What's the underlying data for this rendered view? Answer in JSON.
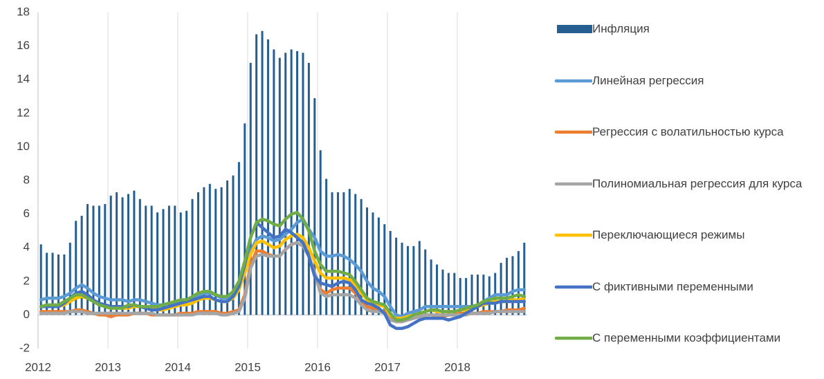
{
  "chart_data": {
    "type": "bar-line",
    "categories": [
      "2012",
      null,
      null,
      null,
      null,
      null,
      null,
      null,
      null,
      null,
      null,
      null,
      "2013",
      null,
      null,
      null,
      null,
      null,
      null,
      null,
      null,
      null,
      null,
      null,
      "2014",
      null,
      null,
      null,
      null,
      null,
      null,
      null,
      null,
      null,
      null,
      null,
      "2015",
      null,
      null,
      null,
      null,
      null,
      null,
      null,
      null,
      null,
      null,
      null,
      "2016",
      null,
      null,
      null,
      null,
      null,
      null,
      null,
      null,
      null,
      null,
      null,
      "2017",
      null,
      null,
      null,
      null,
      null,
      null,
      null,
      null,
      null,
      null,
      null,
      "2018",
      null,
      null,
      null,
      null,
      null,
      null,
      null,
      null,
      null,
      null,
      null
    ],
    "series": [
      {
        "name": "Инфляция",
        "kind": "bar",
        "color": "#255e91",
        "values": [
          4.2,
          3.7,
          3.7,
          3.6,
          3.6,
          4.3,
          5.6,
          5.9,
          6.6,
          6.5,
          6.5,
          6.6,
          7.1,
          7.3,
          7.0,
          7.2,
          7.4,
          6.9,
          6.5,
          6.5,
          6.1,
          6.3,
          6.5,
          6.5,
          6.1,
          6.2,
          6.9,
          7.3,
          7.6,
          7.8,
          7.5,
          7.6,
          8.0,
          8.3,
          9.1,
          11.4,
          15.0,
          16.7,
          16.9,
          16.4,
          15.8,
          15.3,
          15.6,
          15.8,
          15.7,
          15.6,
          15.0,
          12.9,
          9.8,
          8.1,
          7.3,
          7.3,
          7.3,
          7.5,
          7.2,
          6.9,
          6.4,
          6.1,
          5.8,
          5.4,
          5.0,
          4.6,
          4.3,
          4.1,
          4.1,
          4.4,
          3.9,
          3.3,
          3.0,
          2.7,
          2.5,
          2.5,
          2.2,
          2.2,
          2.4,
          2.4,
          2.4,
          2.3,
          2.5,
          3.1,
          3.4,
          3.5,
          3.8,
          4.3
        ]
      },
      {
        "name": "Линейная регрессия",
        "kind": "line",
        "color": "#5b9bd5",
        "values": [
          0.9,
          1.0,
          1.0,
          1.0,
          1.1,
          1.3,
          1.6,
          1.8,
          1.6,
          1.3,
          1.1,
          1.0,
          0.9,
          0.9,
          0.9,
          0.8,
          0.9,
          0.9,
          0.8,
          0.7,
          0.6,
          0.6,
          0.7,
          0.7,
          0.8,
          0.8,
          0.9,
          1.1,
          1.3,
          1.3,
          1.2,
          1.0,
          1.0,
          1.2,
          1.6,
          2.5,
          3.8,
          4.5,
          4.7,
          4.6,
          4.4,
          4.5,
          4.8,
          5.1,
          5.5,
          5.7,
          5.1,
          4.6,
          3.8,
          3.5,
          3.5,
          3.6,
          3.5,
          3.3,
          3.0,
          2.6,
          2.0,
          1.6,
          1.4,
          1.1,
          0.5,
          0.0,
          -0.1,
          0.1,
          0.2,
          0.3,
          0.5,
          0.5,
          0.5,
          0.5,
          0.5,
          0.5,
          0.5,
          0.5,
          0.5,
          0.6,
          0.8,
          1.0,
          1.2,
          1.2,
          1.2,
          1.4,
          1.5,
          1.5
        ]
      },
      {
        "name": "Регрессия с волатильностью курса",
        "kind": "line",
        "color": "#ed7d31",
        "values": [
          0.2,
          0.2,
          0.2,
          0.2,
          0.2,
          0.2,
          0.3,
          0.3,
          0.2,
          0.1,
          0.0,
          0.0,
          -0.1,
          0.0,
          0.0,
          0.0,
          0.1,
          0.1,
          0.1,
          0.0,
          0.0,
          0.0,
          0.0,
          0.0,
          0.1,
          0.1,
          0.1,
          0.2,
          0.2,
          0.2,
          0.2,
          0.1,
          0.1,
          0.2,
          0.3,
          1.2,
          3.0,
          3.8,
          3.8,
          3.6,
          3.5,
          3.5,
          3.9,
          4.2,
          4.3,
          4.1,
          3.5,
          2.5,
          1.5,
          1.3,
          1.5,
          1.6,
          1.6,
          1.6,
          1.3,
          0.9,
          0.5,
          0.4,
          0.3,
          0.2,
          -0.2,
          -0.4,
          -0.4,
          -0.3,
          -0.2,
          -0.1,
          0.0,
          0.0,
          -0.1,
          -0.1,
          0.0,
          0.0,
          0.1,
          0.1,
          0.1,
          0.1,
          0.2,
          0.2,
          0.2,
          0.2,
          0.3,
          0.3,
          0.3,
          0.4
        ]
      },
      {
        "name": "Полиномиальная регрессия для курса",
        "kind": "line",
        "color": "#a5a5a5",
        "values": [
          0.1,
          0.1,
          0.1,
          0.1,
          0.1,
          0.2,
          0.2,
          0.2,
          0.1,
          0.1,
          0.1,
          0.1,
          0.1,
          0.1,
          0.1,
          0.1,
          0.1,
          0.1,
          0.1,
          0.1,
          0.0,
          0.0,
          0.0,
          0.0,
          0.0,
          0.0,
          0.0,
          0.1,
          0.1,
          0.1,
          0.1,
          0.0,
          0.0,
          0.1,
          0.2,
          1.0,
          2.8,
          3.5,
          3.6,
          3.5,
          3.5,
          3.5,
          3.9,
          4.2,
          4.3,
          4.1,
          3.5,
          2.5,
          1.3,
          1.1,
          1.2,
          1.2,
          1.2,
          1.2,
          1.0,
          0.6,
          0.3,
          0.2,
          0.2,
          0.1,
          -0.3,
          -0.4,
          -0.4,
          -0.3,
          -0.2,
          -0.1,
          0.0,
          0.0,
          0.0,
          0.0,
          0.0,
          0.0,
          0.0,
          0.0,
          0.1,
          0.1,
          0.1,
          0.1,
          0.2,
          0.2,
          0.2,
          0.2,
          0.2,
          0.2
        ]
      },
      {
        "name": "Переключающиеся режимы",
        "kind": "line",
        "color": "#ffc000",
        "values": [
          0.5,
          0.5,
          0.5,
          0.5,
          0.6,
          0.8,
          1.0,
          1.1,
          1.0,
          0.8,
          0.6,
          0.5,
          0.4,
          0.4,
          0.4,
          0.4,
          0.5,
          0.5,
          0.5,
          0.4,
          0.3,
          0.3,
          0.4,
          0.5,
          0.6,
          0.6,
          0.7,
          0.9,
          1.0,
          1.0,
          0.9,
          0.8,
          0.8,
          1.0,
          1.5,
          2.5,
          3.6,
          4.3,
          4.4,
          4.2,
          4.0,
          4.1,
          4.5,
          4.7,
          4.8,
          4.6,
          4.0,
          3.2,
          2.5,
          2.2,
          2.2,
          2.2,
          2.2,
          2.1,
          1.8,
          1.3,
          0.9,
          0.7,
          0.6,
          0.5,
          0.0,
          -0.2,
          -0.2,
          -0.1,
          0.0,
          0.1,
          0.2,
          0.3,
          0.2,
          0.2,
          0.2,
          0.2,
          0.3,
          0.3,
          0.4,
          0.5,
          0.6,
          0.7,
          0.8,
          0.8,
          0.8,
          0.9,
          0.9,
          1.0
        ]
      },
      {
        "name": "С фиктивными переменными",
        "kind": "line",
        "color": "#4472c4",
        "values": [
          0.5,
          0.5,
          0.5,
          0.5,
          0.7,
          1.0,
          1.3,
          1.4,
          1.2,
          0.9,
          0.7,
          0.6,
          0.5,
          0.5,
          0.5,
          0.5,
          0.6,
          0.5,
          0.4,
          0.3,
          0.3,
          0.4,
          0.5,
          0.6,
          0.7,
          0.8,
          0.9,
          1.0,
          1.1,
          1.1,
          0.9,
          0.8,
          0.8,
          1.1,
          1.7,
          3.0,
          4.6,
          5.5,
          5.2,
          4.9,
          4.6,
          4.7,
          5.1,
          4.9,
          4.6,
          4.3,
          3.5,
          2.3,
          1.9,
          1.8,
          1.7,
          1.9,
          2.0,
          1.9,
          1.5,
          0.9,
          0.7,
          0.6,
          0.4,
          0.1,
          -0.6,
          -0.8,
          -0.8,
          -0.7,
          -0.5,
          -0.3,
          -0.2,
          -0.2,
          -0.2,
          -0.2,
          -0.3,
          -0.2,
          -0.1,
          0.1,
          0.3,
          0.5,
          0.7,
          0.7,
          0.7,
          0.8,
          0.8,
          0.8,
          0.8,
          0.8
        ]
      },
      {
        "name": "С переменными коэффициентами",
        "kind": "line",
        "color": "#70ad47",
        "values": [
          0.5,
          0.6,
          0.6,
          0.6,
          0.8,
          1.0,
          1.2,
          1.2,
          1.0,
          0.8,
          0.6,
          0.5,
          0.4,
          0.4,
          0.4,
          0.6,
          0.6,
          0.5,
          0.5,
          0.5,
          0.5,
          0.6,
          0.7,
          0.8,
          0.9,
          0.9,
          1.1,
          1.3,
          1.4,
          1.4,
          1.2,
          1.1,
          1.1,
          1.4,
          2.0,
          3.2,
          4.6,
          5.5,
          5.7,
          5.6,
          5.4,
          5.3,
          5.7,
          6.0,
          6.1,
          5.7,
          5.0,
          3.8,
          3.0,
          2.6,
          2.6,
          2.6,
          2.5,
          2.4,
          2.0,
          1.5,
          1.0,
          0.8,
          0.7,
          0.6,
          0.1,
          -0.3,
          -0.3,
          -0.2,
          0.0,
          0.1,
          0.2,
          0.3,
          0.3,
          0.2,
          0.2,
          0.2,
          0.3,
          0.4,
          0.5,
          0.6,
          0.8,
          0.9,
          1.0,
          1.0,
          1.0,
          1.1,
          1.2,
          1.1
        ]
      }
    ],
    "ylim": [
      -2,
      18
    ],
    "yticks": [
      -2,
      0,
      2,
      4,
      6,
      8,
      10,
      12,
      14,
      16,
      18
    ],
    "grid": "x",
    "legend": "right"
  }
}
